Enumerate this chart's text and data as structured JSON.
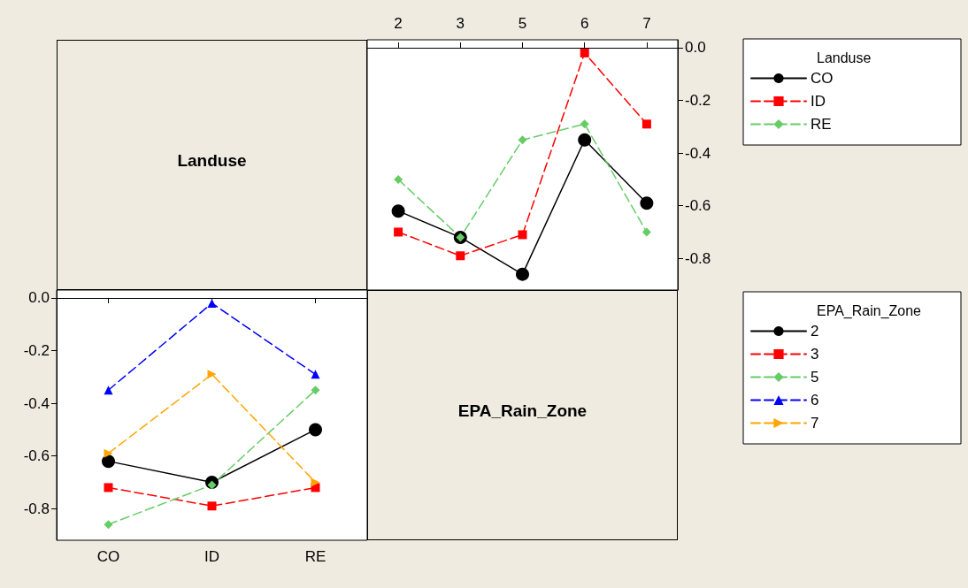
{
  "chart_data": [
    {
      "type": "other",
      "title": "Landuse"
    },
    {
      "type": "line",
      "categories": [
        "2",
        "3",
        "5",
        "6",
        "7"
      ],
      "legend_title": "Landuse",
      "legend": "right",
      "ylim": [
        -0.92,
        0.03
      ],
      "yticks": [
        {
          "value": -0.8,
          "label": "-0.8"
        },
        {
          "value": -0.6,
          "label": "-0.6"
        },
        {
          "value": -0.4,
          "label": "-0.4"
        },
        {
          "value": -0.2,
          "label": "-0.2"
        },
        {
          "value": 0,
          "label": "0.0"
        }
      ],
      "series": [
        {
          "name": "CO",
          "color": "#000000",
          "marker": "circle",
          "line_style": "solid",
          "values": [
            -0.62,
            -0.72,
            -0.86,
            -0.35,
            -0.59
          ]
        },
        {
          "name": "ID",
          "color": "#ff0000",
          "marker": "square",
          "line_style": "dashed",
          "values": [
            -0.7,
            -0.79,
            -0.71,
            -0.02,
            -0.29
          ]
        },
        {
          "name": "RE",
          "color": "#66cc66",
          "marker": "diamond",
          "line_style": "dashed",
          "values": [
            -0.5,
            -0.72,
            -0.35,
            -0.29,
            -0.7
          ]
        }
      ]
    },
    {
      "type": "line",
      "categories": [
        "CO",
        "ID",
        "RE"
      ],
      "legend_title": "EPA_Rain_Zone",
      "legend": "right",
      "ylim": [
        -0.92,
        0.03
      ],
      "yticks": [
        {
          "value": -0.8,
          "label": "-0.8"
        },
        {
          "value": -0.6,
          "label": "-0.6"
        },
        {
          "value": -0.4,
          "label": "-0.4"
        },
        {
          "value": -0.2,
          "label": "-0.2"
        },
        {
          "value": 0,
          "label": "0.0"
        }
      ],
      "series": [
        {
          "name": "2",
          "color": "#000000",
          "marker": "circle",
          "line_style": "solid",
          "values": [
            -0.62,
            -0.7,
            -0.5
          ]
        },
        {
          "name": "3",
          "color": "#ff0000",
          "marker": "square",
          "line_style": "dashed",
          "values": [
            -0.72,
            -0.79,
            -0.72
          ]
        },
        {
          "name": "5",
          "color": "#66cc66",
          "marker": "diamond",
          "line_style": "dashed",
          "values": [
            -0.86,
            -0.71,
            -0.35
          ]
        },
        {
          "name": "6",
          "color": "#0000ff",
          "marker": "triangle",
          "line_style": "dashed",
          "values": [
            -0.35,
            -0.02,
            -0.29
          ]
        },
        {
          "name": "7",
          "color": "#ffa500",
          "marker": "triangle-right",
          "line_style": "dashed",
          "values": [
            -0.59,
            -0.29,
            -0.7
          ]
        }
      ]
    },
    {
      "type": "other",
      "title": "EPA_Rain_Zone"
    }
  ]
}
